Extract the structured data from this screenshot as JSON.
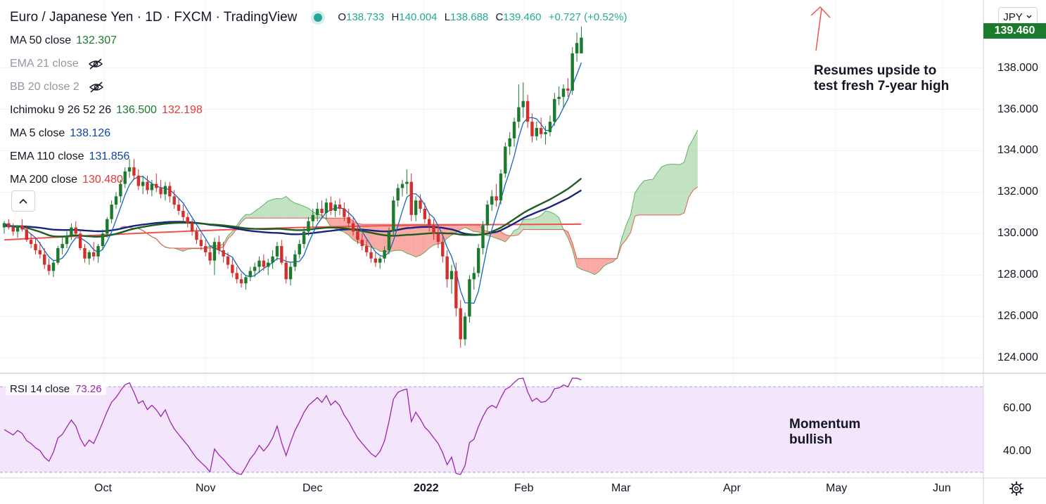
{
  "header": {
    "title": "Euro / Japanese Yen · 1D · FXCM · TradingView",
    "ohlc": [
      {
        "k": "O",
        "v": "138.733"
      },
      {
        "k": "H",
        "v": "140.004"
      },
      {
        "k": "L",
        "v": "138.688"
      },
      {
        "k": "C",
        "v": "139.460"
      }
    ],
    "change": "+0.727 (+0.52%)"
  },
  "legend": [
    {
      "name": "MA 50 close",
      "values": [
        "132.307"
      ],
      "colors": [
        "#1b7a2d"
      ],
      "hidden": false
    },
    {
      "name": "EMA 21 close",
      "values": [],
      "colors": [],
      "hidden": true
    },
    {
      "name": "BB 20 close 2",
      "values": [],
      "colors": [],
      "hidden": true
    },
    {
      "name": "Ichimoku 9 26 52 26",
      "values": [
        "136.500",
        "132.198"
      ],
      "colors": [
        "#1b7a2d",
        "#e53935"
      ],
      "hidden": false
    },
    {
      "name": "MA 5 close",
      "values": [
        "138.126"
      ],
      "colors": [
        "#0d47a1"
      ],
      "hidden": false
    },
    {
      "name": "EMA 110 close",
      "values": [
        "131.856"
      ],
      "colors": [
        "#0d47a1"
      ],
      "hidden": false
    },
    {
      "name": "MA 200 close",
      "values": [
        "130.480"
      ],
      "colors": [
        "#e53935"
      ],
      "hidden": false
    }
  ],
  "rsi": {
    "name": "RSI 14 close",
    "value": "73.26"
  },
  "currency_button": "JPY",
  "last_price": "139.460",
  "annotations": {
    "price": [
      "Resumes upside to",
      "test fresh 7-year high"
    ],
    "rsi": [
      "Momentum",
      "bullish"
    ]
  },
  "colors": {
    "up": "#1b7a2d",
    "down": "#d32f2f",
    "rsi": "#9c27b0",
    "rsi_band": "#f3e5fb"
  },
  "chart_data": {
    "type": "candlestick",
    "y_ticks": [
      124,
      126,
      128,
      130,
      132,
      134,
      136,
      138
    ],
    "ylim": [
      123.5,
      140.8
    ],
    "x_labels": [
      "Oct",
      "Nov",
      "Dec",
      "2022",
      "Feb",
      "Mar",
      "Apr",
      "May",
      "Jun"
    ],
    "rsi_ticks": [
      "60.00",
      "40.00"
    ],
    "rsi_levels": [
      70,
      30
    ],
    "rsi_ylim": [
      28,
      76
    ],
    "candles": [
      [
        130.3,
        130.6,
        130.0,
        130.5
      ],
      [
        130.5,
        130.7,
        130.2,
        130.3
      ],
      [
        130.3,
        130.5,
        129.9,
        130.1
      ],
      [
        130.1,
        130.4,
        129.8,
        130.4
      ],
      [
        130.4,
        130.7,
        130.1,
        130.2
      ],
      [
        130.2,
        130.4,
        129.6,
        129.7
      ],
      [
        129.7,
        130.0,
        129.3,
        129.5
      ],
      [
        129.5,
        129.8,
        129.0,
        129.2
      ],
      [
        129.2,
        129.6,
        128.8,
        129.0
      ],
      [
        129.0,
        129.3,
        128.3,
        128.5
      ],
      [
        128.5,
        128.8,
        128.0,
        128.2
      ],
      [
        128.2,
        128.7,
        127.9,
        128.6
      ],
      [
        128.6,
        129.4,
        128.5,
        129.3
      ],
      [
        129.3,
        129.8,
        129.0,
        129.5
      ],
      [
        129.5,
        130.1,
        129.3,
        129.9
      ],
      [
        129.9,
        130.5,
        129.7,
        130.3
      ],
      [
        130.3,
        130.6,
        129.9,
        130.0
      ],
      [
        130.0,
        130.2,
        129.2,
        129.3
      ],
      [
        129.3,
        129.5,
        128.6,
        128.8
      ],
      [
        128.8,
        129.2,
        128.5,
        129.1
      ],
      [
        129.1,
        129.6,
        128.7,
        128.9
      ],
      [
        128.9,
        129.5,
        128.6,
        129.4
      ],
      [
        129.4,
        130.2,
        129.2,
        130.0
      ],
      [
        130.0,
        130.8,
        129.8,
        130.7
      ],
      [
        130.7,
        131.6,
        130.5,
        131.4
      ],
      [
        131.4,
        132.0,
        131.2,
        131.8
      ],
      [
        131.8,
        132.6,
        131.5,
        132.4
      ],
      [
        132.4,
        133.2,
        132.2,
        133.0
      ],
      [
        133.0,
        133.6,
        132.7,
        133.2
      ],
      [
        133.2,
        133.6,
        132.6,
        132.8
      ],
      [
        132.8,
        133.1,
        132.1,
        132.3
      ],
      [
        132.3,
        132.8,
        131.9,
        132.5
      ],
      [
        132.5,
        132.8,
        131.9,
        132.1
      ],
      [
        132.1,
        132.6,
        131.8,
        132.4
      ],
      [
        132.4,
        132.9,
        132.0,
        132.2
      ],
      [
        132.2,
        132.6,
        131.7,
        131.9
      ],
      [
        131.9,
        132.5,
        131.6,
        132.3
      ],
      [
        132.3,
        132.5,
        131.5,
        131.8
      ],
      [
        131.8,
        132.1,
        131.2,
        131.4
      ],
      [
        131.4,
        131.7,
        130.9,
        131.1
      ],
      [
        131.1,
        131.4,
        130.6,
        130.8
      ],
      [
        130.8,
        131.0,
        130.3,
        130.5
      ],
      [
        130.5,
        130.7,
        129.9,
        130.1
      ],
      [
        130.1,
        130.3,
        129.5,
        129.7
      ],
      [
        129.7,
        130.0,
        129.2,
        129.4
      ],
      [
        129.4,
        129.7,
        128.9,
        129.1
      ],
      [
        129.1,
        129.4,
        128.5,
        128.7
      ],
      [
        128.7,
        129.8,
        128.0,
        129.6
      ],
      [
        129.6,
        129.9,
        129.0,
        129.2
      ],
      [
        129.2,
        129.6,
        128.6,
        128.9
      ],
      [
        128.9,
        129.1,
        128.3,
        128.5
      ],
      [
        128.5,
        128.8,
        127.9,
        128.1
      ],
      [
        128.1,
        128.4,
        127.6,
        127.8
      ],
      [
        127.8,
        128.1,
        127.4,
        127.6
      ],
      [
        127.6,
        128.0,
        127.3,
        127.9
      ],
      [
        127.9,
        128.4,
        127.7,
        128.2
      ],
      [
        128.2,
        128.6,
        127.9,
        128.4
      ],
      [
        128.4,
        128.9,
        128.1,
        128.7
      ],
      [
        128.7,
        129.0,
        128.2,
        128.4
      ],
      [
        128.4,
        128.8,
        128.0,
        128.6
      ],
      [
        128.6,
        129.2,
        128.3,
        128.9
      ],
      [
        128.9,
        129.6,
        128.7,
        129.4
      ],
      [
        129.4,
        129.7,
        128.5,
        128.6
      ],
      [
        128.6,
        128.9,
        127.6,
        127.8
      ],
      [
        127.8,
        128.6,
        127.5,
        128.4
      ],
      [
        128.4,
        129.2,
        128.2,
        129.0
      ],
      [
        129.0,
        129.7,
        128.8,
        129.5
      ],
      [
        129.5,
        130.3,
        129.3,
        130.1
      ],
      [
        130.1,
        130.8,
        129.9,
        130.6
      ],
      [
        130.6,
        131.2,
        130.3,
        130.9
      ],
      [
        130.9,
        131.5,
        130.6,
        131.2
      ],
      [
        131.2,
        131.6,
        130.8,
        131.0
      ],
      [
        131.0,
        131.7,
        130.7,
        131.5
      ],
      [
        131.5,
        131.8,
        130.9,
        131.1
      ],
      [
        131.1,
        131.6,
        130.8,
        131.4
      ],
      [
        131.4,
        131.7,
        130.9,
        131.2
      ],
      [
        131.2,
        131.5,
        130.6,
        130.8
      ],
      [
        130.8,
        131.2,
        130.3,
        130.5
      ],
      [
        130.5,
        130.8,
        129.9,
        130.1
      ],
      [
        130.1,
        130.4,
        129.5,
        129.7
      ],
      [
        129.7,
        130.0,
        129.2,
        129.4
      ],
      [
        129.4,
        129.7,
        128.9,
        129.1
      ],
      [
        129.1,
        129.4,
        128.6,
        128.8
      ],
      [
        128.8,
        129.1,
        128.4,
        128.6
      ],
      [
        128.6,
        128.9,
        128.3,
        128.8
      ],
      [
        128.8,
        129.4,
        128.6,
        129.2
      ],
      [
        129.2,
        130.3,
        129.0,
        130.1
      ],
      [
        130.1,
        131.8,
        129.9,
        131.6
      ],
      [
        131.6,
        132.4,
        131.3,
        132.2
      ],
      [
        132.2,
        132.6,
        131.8,
        132.4
      ],
      [
        132.4,
        133.1,
        131.9,
        132.5
      ],
      [
        132.5,
        132.9,
        130.6,
        130.9
      ],
      [
        130.9,
        131.8,
        130.6,
        131.6
      ],
      [
        131.6,
        131.9,
        131.0,
        131.2
      ],
      [
        131.2,
        131.5,
        130.5,
        130.7
      ],
      [
        130.7,
        131.0,
        130.1,
        130.4
      ],
      [
        130.4,
        130.7,
        129.7,
        130.0
      ],
      [
        130.0,
        130.4,
        129.3,
        129.6
      ],
      [
        129.6,
        130.0,
        128.6,
        128.9
      ],
      [
        128.9,
        129.2,
        127.4,
        127.8
      ],
      [
        127.8,
        128.5,
        127.1,
        128.2
      ],
      [
        128.2,
        128.6,
        126.0,
        126.4
      ],
      [
        126.4,
        126.8,
        124.5,
        124.9
      ],
      [
        124.9,
        126.2,
        124.6,
        126.0
      ],
      [
        126.0,
        128.0,
        125.7,
        127.8
      ],
      [
        127.8,
        128.4,
        127.3,
        128.1
      ],
      [
        128.1,
        129.5,
        127.9,
        129.3
      ],
      [
        129.3,
        130.6,
        129.0,
        130.4
      ],
      [
        130.4,
        131.6,
        130.1,
        131.4
      ],
      [
        131.4,
        132.1,
        131.1,
        131.8
      ],
      [
        131.8,
        132.4,
        131.3,
        131.6
      ],
      [
        131.6,
        133.1,
        131.4,
        132.9
      ],
      [
        132.9,
        134.4,
        132.7,
        134.2
      ],
      [
        134.2,
        134.9,
        133.8,
        134.6
      ],
      [
        134.6,
        135.6,
        134.2,
        135.4
      ],
      [
        135.4,
        137.2,
        135.1,
        136.1
      ],
      [
        136.1,
        137.3,
        135.6,
        136.4
      ],
      [
        136.4,
        136.7,
        135.1,
        135.4
      ],
      [
        135.4,
        135.8,
        134.4,
        134.7
      ],
      [
        134.7,
        135.4,
        134.5,
        135.1
      ],
      [
        135.1,
        135.6,
        134.6,
        134.8
      ],
      [
        134.8,
        135.2,
        134.3,
        134.9
      ],
      [
        134.9,
        135.7,
        134.7,
        135.4
      ],
      [
        135.4,
        136.8,
        135.2,
        136.5
      ],
      [
        136.5,
        137.1,
        136.2,
        136.6
      ],
      [
        136.6,
        137.2,
        136.1,
        137.0
      ],
      [
        137.0,
        137.5,
        136.6,
        136.9
      ],
      [
        136.9,
        139.0,
        136.7,
        138.7
      ],
      [
        138.7,
        139.7,
        138.3,
        139.2
      ],
      [
        138.7,
        140.0,
        138.7,
        139.46
      ]
    ]
  }
}
